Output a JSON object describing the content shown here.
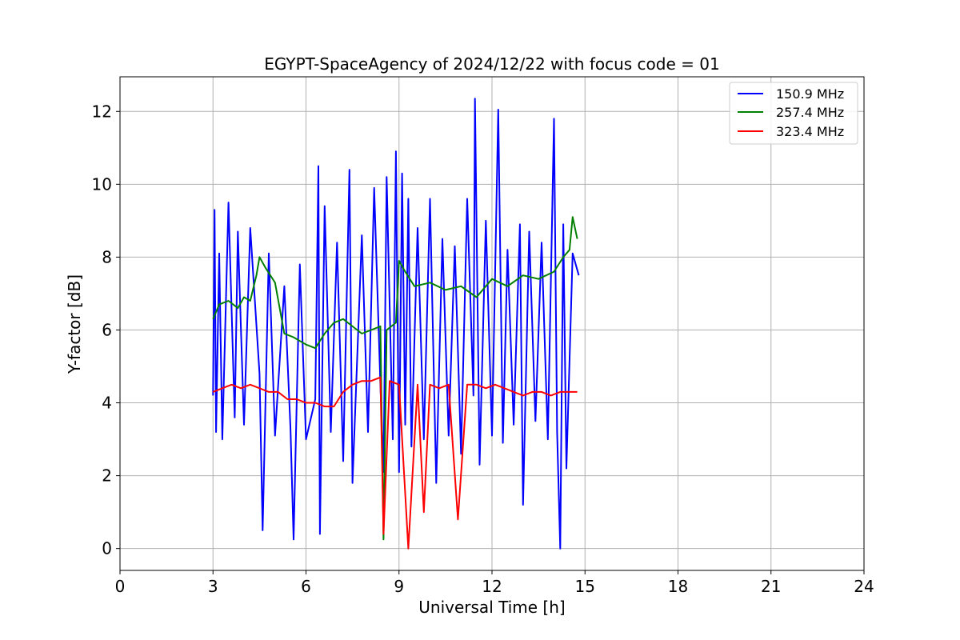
{
  "chart_data": {
    "type": "line",
    "title": "EGYPT-SpaceAgency of 2024/12/22 with focus code = 01",
    "xlabel": "Universal Time [h]",
    "ylabel": "Y-factor [dB]",
    "xlim": [
      0,
      24
    ],
    "ylim": [
      -0.6,
      12.95
    ],
    "xticks": [
      0,
      3,
      6,
      9,
      12,
      15,
      18,
      21,
      24
    ],
    "yticks": [
      0,
      2,
      4,
      6,
      8,
      10,
      12
    ],
    "grid": true,
    "legend_position": "top-right",
    "series": [
      {
        "name": "150.9 MHz",
        "color": "#0000ff",
        "x": [
          3.0,
          3.05,
          3.1,
          3.2,
          3.3,
          3.5,
          3.7,
          3.8,
          4.0,
          4.2,
          4.5,
          4.6,
          4.8,
          5.0,
          5.3,
          5.5,
          5.6,
          5.8,
          6.0,
          6.3,
          6.4,
          6.45,
          6.6,
          6.8,
          7.0,
          7.2,
          7.4,
          7.5,
          7.8,
          8.0,
          8.2,
          8.4,
          8.5,
          8.6,
          8.8,
          8.9,
          9.0,
          9.1,
          9.2,
          9.3,
          9.4,
          9.6,
          9.8,
          10.0,
          10.2,
          10.4,
          10.6,
          10.8,
          11.0,
          11.2,
          11.4,
          11.45,
          11.6,
          11.8,
          12.0,
          12.2,
          12.35,
          12.5,
          12.7,
          12.9,
          13.0,
          13.2,
          13.4,
          13.6,
          13.8,
          14.0,
          14.1,
          14.2,
          14.3,
          14.4,
          14.6,
          14.8
        ],
        "values": [
          4.2,
          9.3,
          3.2,
          8.1,
          3.0,
          9.5,
          3.6,
          8.7,
          3.4,
          8.8,
          4.8,
          0.5,
          8.1,
          3.1,
          7.2,
          3.3,
          0.25,
          7.8,
          3.0,
          4.1,
          10.5,
          0.4,
          9.4,
          3.2,
          8.4,
          2.4,
          10.4,
          1.8,
          8.6,
          3.2,
          9.9,
          4.5,
          2.1,
          10.2,
          3.0,
          10.9,
          2.1,
          10.3,
          3.4,
          9.6,
          2.8,
          8.8,
          3.0,
          9.6,
          1.8,
          8.5,
          3.1,
          8.3,
          2.6,
          9.6,
          4.2,
          12.35,
          2.3,
          9.0,
          3.1,
          12.05,
          2.9,
          8.2,
          3.4,
          8.9,
          1.2,
          8.7,
          3.5,
          8.4,
          3.0,
          11.8,
          3.2,
          0.0,
          8.9,
          2.2,
          8.1,
          7.5
        ]
      },
      {
        "name": "257.4 MHz",
        "color": "#008000",
        "x": [
          3.0,
          3.2,
          3.5,
          3.8,
          4.0,
          4.2,
          4.4,
          4.5,
          4.7,
          5.0,
          5.3,
          5.6,
          6.0,
          6.3,
          6.6,
          6.9,
          7.2,
          7.5,
          7.8,
          8.1,
          8.4,
          8.5,
          8.6,
          8.9,
          9.0,
          9.2,
          9.5,
          10.0,
          10.5,
          11.0,
          11.5,
          12.0,
          12.5,
          13.0,
          13.5,
          14.0,
          14.3,
          14.5,
          14.6,
          14.75
        ],
        "values": [
          6.3,
          6.7,
          6.8,
          6.6,
          6.9,
          6.8,
          7.5,
          8.0,
          7.7,
          7.3,
          5.9,
          5.8,
          5.6,
          5.5,
          5.9,
          6.2,
          6.3,
          6.1,
          5.9,
          6.0,
          6.1,
          0.25,
          6.0,
          6.2,
          7.9,
          7.6,
          7.2,
          7.3,
          7.1,
          7.2,
          6.9,
          7.4,
          7.2,
          7.5,
          7.4,
          7.6,
          8.0,
          8.2,
          9.1,
          8.5
        ]
      },
      {
        "name": "323.4 MHz",
        "color": "#ff0000",
        "x": [
          3.0,
          3.3,
          3.6,
          3.9,
          4.2,
          4.5,
          4.8,
          5.1,
          5.4,
          5.7,
          6.0,
          6.3,
          6.6,
          6.9,
          7.2,
          7.5,
          7.8,
          8.1,
          8.4,
          8.5,
          8.7,
          9.0,
          9.3,
          9.6,
          9.8,
          10.0,
          10.3,
          10.6,
          10.9,
          11.2,
          11.5,
          11.8,
          12.1,
          12.4,
          12.7,
          13.0,
          13.3,
          13.6,
          13.9,
          14.2,
          14.5,
          14.75
        ],
        "values": [
          4.3,
          4.4,
          4.5,
          4.4,
          4.5,
          4.4,
          4.3,
          4.3,
          4.1,
          4.1,
          4.0,
          4.0,
          3.9,
          3.9,
          4.3,
          4.5,
          4.6,
          4.6,
          4.7,
          0.4,
          4.6,
          4.5,
          0.0,
          4.5,
          1.0,
          4.5,
          4.4,
          4.5,
          0.8,
          4.5,
          4.5,
          4.4,
          4.5,
          4.4,
          4.3,
          4.2,
          4.3,
          4.3,
          4.2,
          4.3,
          4.3,
          4.3
        ]
      }
    ]
  }
}
